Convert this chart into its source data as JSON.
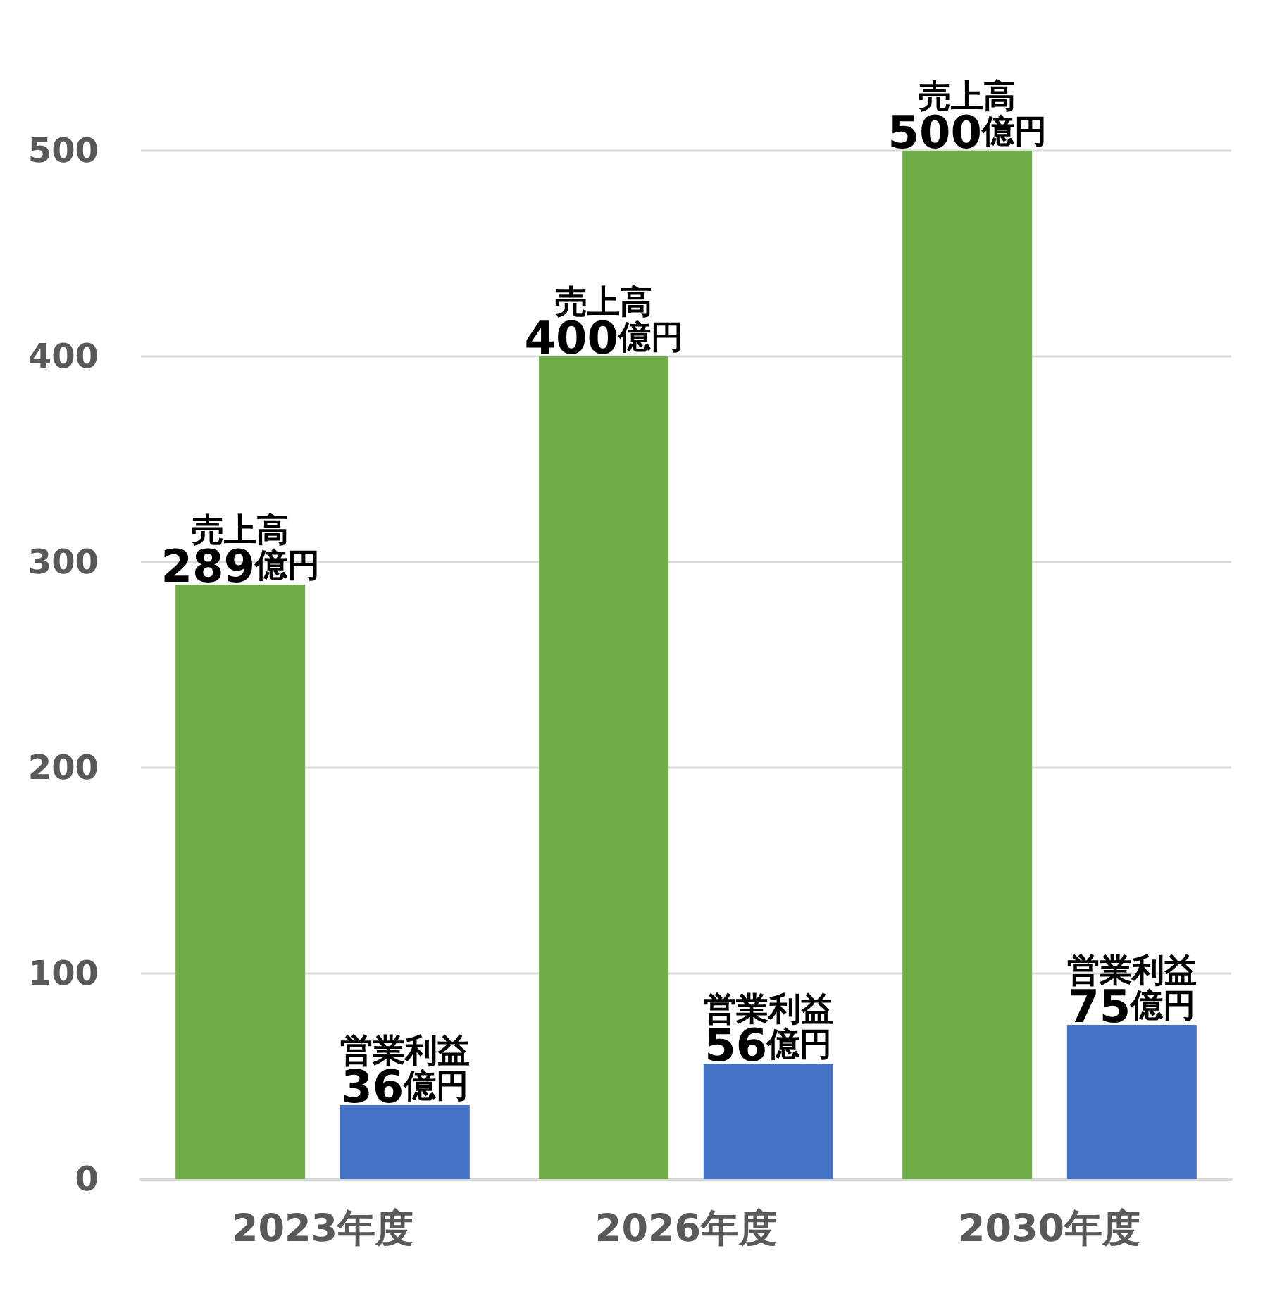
{
  "chart_data": {
    "type": "bar",
    "categories": [
      "2023年度",
      "2026年度",
      "2030年度"
    ],
    "series": [
      {
        "name": "売上高",
        "color": "#70ad47",
        "values": [
          289,
          400,
          500
        ],
        "value_labels": [
          "289億円",
          "400億円",
          "500億円"
        ]
      },
      {
        "name": "営業利益",
        "color": "#4472c4",
        "values": [
          36,
          56,
          75
        ],
        "value_labels": [
          "36億円",
          "56億円",
          "75億円"
        ]
      }
    ],
    "ylim": [
      0,
      500
    ],
    "yticks": [
      0,
      100,
      200,
      300,
      400,
      500
    ],
    "grid": "y",
    "legend": false
  }
}
